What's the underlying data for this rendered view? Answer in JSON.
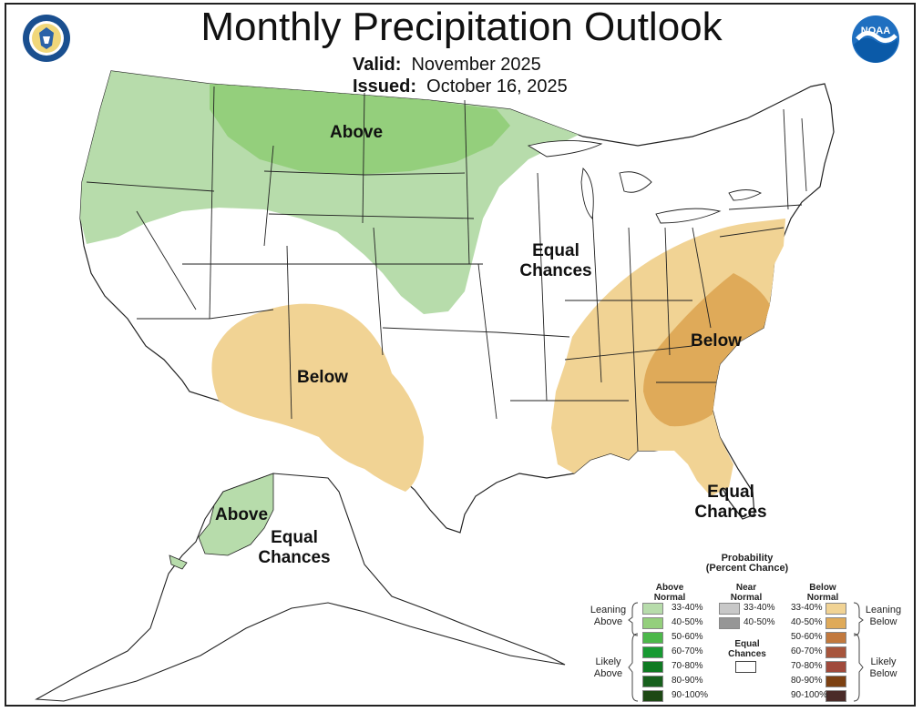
{
  "title": "Monthly Precipitation Outlook",
  "valid_label": "Valid:",
  "valid_value": "November 2025",
  "issued_label": "Issued:",
  "issued_value": "October 16, 2025",
  "logos": {
    "left": "doc-seal",
    "right": "noaa-logo",
    "noaa_text": "NOAA"
  },
  "map_labels": {
    "above_north": "Above",
    "equal_central_1": "Equal",
    "equal_central_2": "Chances",
    "below_southwest": "Below",
    "below_southeast": "Below",
    "equal_florida_1": "Equal",
    "equal_florida_2": "Chances",
    "above_alaska": "Above",
    "equal_alaska_1": "Equal",
    "equal_alaska_2": "Chances"
  },
  "colors": {
    "above_33_40": "#b7dcab",
    "above_40_50": "#94cf7c",
    "below_33_40": "#f1d394",
    "below_40_50": "#dfaa59",
    "state_lines": "#222222",
    "water_bg": "#ffffff"
  },
  "legend": {
    "title_1": "Probability",
    "title_2": "(Percent Chance)",
    "above_head_1": "Above",
    "above_head_2": "Normal",
    "near_head_1": "Near",
    "near_head_2": "Normal",
    "below_head_1": "Below",
    "below_head_2": "Normal",
    "leaning_above_1": "Leaning",
    "leaning_above_2": "Above",
    "likely_above_1": "Likely",
    "likely_above_2": "Above",
    "leaning_below_1": "Leaning",
    "leaning_below_2": "Below",
    "likely_below_1": "Likely",
    "likely_below_2": "Below",
    "equal_1": "Equal",
    "equal_2": "Chances",
    "above_items": [
      {
        "label": "33-40%",
        "color": "#b7dcab"
      },
      {
        "label": "40-50%",
        "color": "#94cf7c"
      },
      {
        "label": "50-60%",
        "color": "#4cb84a"
      },
      {
        "label": "60-70%",
        "color": "#179a32"
      },
      {
        "label": "70-80%",
        "color": "#0f7a22"
      },
      {
        "label": "80-90%",
        "color": "#17601d"
      },
      {
        "label": "90-100%",
        "color": "#1d4814"
      }
    ],
    "near_items": [
      {
        "label": "33-40%",
        "color": "#c8c8c8"
      },
      {
        "label": "40-50%",
        "color": "#969696"
      }
    ],
    "below_items": [
      {
        "label": "33-40%",
        "color": "#f1d394"
      },
      {
        "label": "40-50%",
        "color": "#dfaa59"
      },
      {
        "label": "50-60%",
        "color": "#c2793e"
      },
      {
        "label": "60-70%",
        "color": "#a7553c"
      },
      {
        "label": "70-80%",
        "color": "#a04a3c"
      },
      {
        "label": "80-90%",
        "color": "#7d4112"
      },
      {
        "label": "90-100%",
        "color": "#4a2b28"
      }
    ]
  }
}
